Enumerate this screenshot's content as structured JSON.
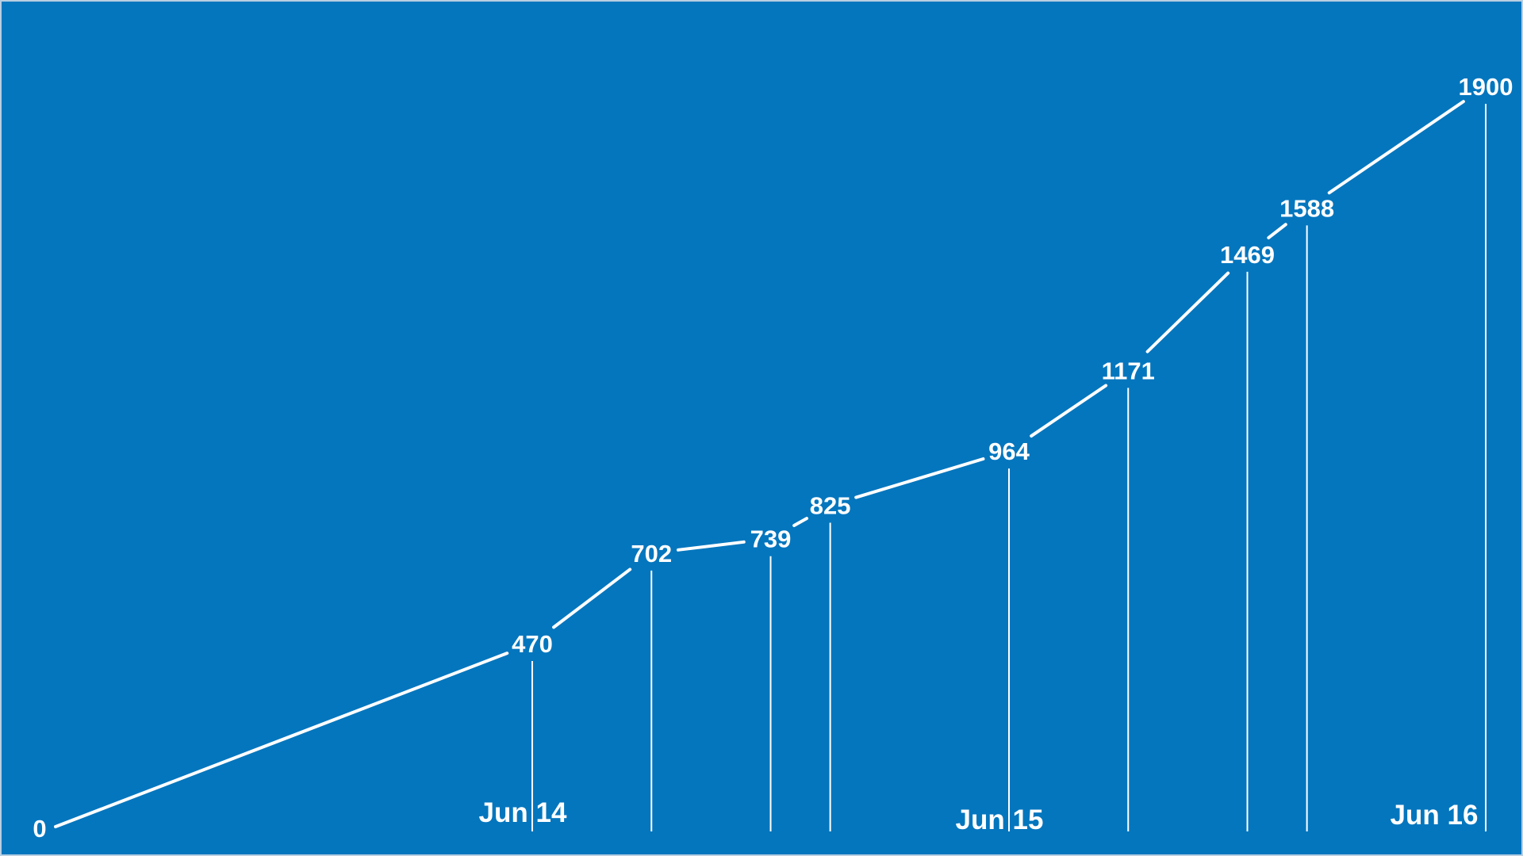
{
  "chart_data": {
    "type": "line",
    "background_color": "#0476be",
    "line_color": "#ffffff",
    "label_color": "#ffffff",
    "grid": false,
    "legend": "none",
    "series": [
      {
        "points": [
          {
            "x": "2019-06-13 00:00",
            "y": 0,
            "label": "0"
          },
          {
            "x": "2019-06-14 00:00",
            "y": 470,
            "label": "470"
          },
          {
            "x": "2019-06-14 06:00",
            "y": 702,
            "label": "702"
          },
          {
            "x": "2019-06-14 12:00",
            "y": 739,
            "label": "739"
          },
          {
            "x": "2019-06-14 15:00",
            "y": 825,
            "label": "825"
          },
          {
            "x": "2019-06-15 00:00",
            "y": 964,
            "label": "964"
          },
          {
            "x": "2019-06-15 06:00",
            "y": 1171,
            "label": "1171"
          },
          {
            "x": "2019-06-15 12:00",
            "y": 1469,
            "label": "1469"
          },
          {
            "x": "2019-06-15 15:00",
            "y": 1588,
            "label": "1588"
          },
          {
            "x": "2019-06-16 00:00",
            "y": 1900,
            "label": "1900"
          }
        ]
      }
    ],
    "x_date_labels": [
      {
        "x": "2019-06-14 00:00",
        "text": "Jun 14"
      },
      {
        "x": "2019-06-15 00:00",
        "text": "Jun 15"
      },
      {
        "x": "2019-06-16 00:00",
        "text": "Jun 16"
      }
    ],
    "xlim": [
      "2019-06-13 00:00",
      "2019-06-16 00:00"
    ],
    "ylim": [
      0,
      1900
    ]
  }
}
